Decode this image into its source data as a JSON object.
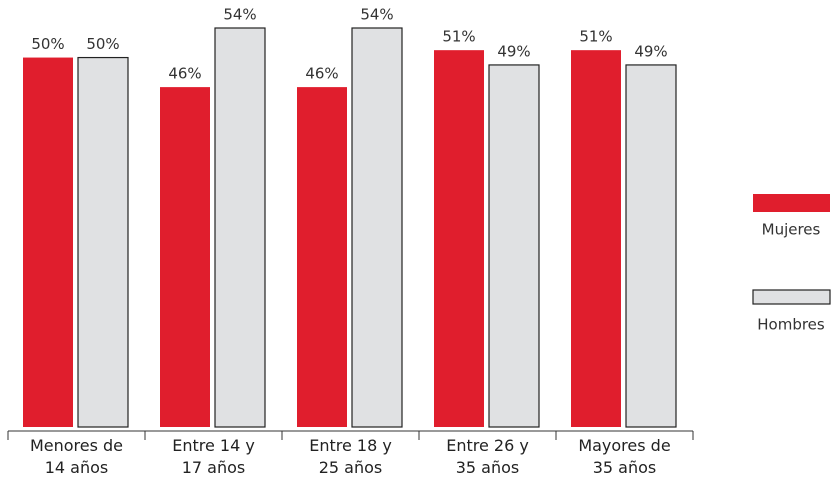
{
  "chart_data": {
    "type": "bar",
    "categories": [
      "Menores de\n14 años",
      "Entre 14 y\n17 años",
      "Entre 18 y\n25 años",
      "Entre 26 y\n35 años",
      "Mayores de\n35 años"
    ],
    "series": [
      {
        "name": "Mujeres",
        "color": "#e01e2d",
        "values": [
          50,
          46,
          46,
          51,
          51
        ],
        "value_labels": [
          "50%",
          "46%",
          "46%",
          "51%",
          "51%"
        ]
      },
      {
        "name": "Hombres",
        "color": "#e0e1e3",
        "values": [
          50,
          54,
          54,
          49,
          49
        ],
        "value_labels": [
          "50%",
          "54%",
          "54%",
          "49%",
          "49%"
        ]
      }
    ],
    "legend": "right"
  }
}
